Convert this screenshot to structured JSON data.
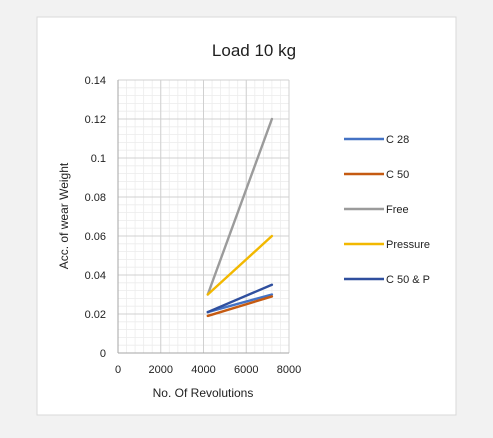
{
  "chart_data": {
    "type": "line",
    "title": "Load 10 kg",
    "xlabel": "No. Of Revolutions",
    "ylabel": "Acc. of  wear Weight",
    "xlim": [
      0,
      8000
    ],
    "ylim": [
      0,
      0.14
    ],
    "x_ticks": [
      "0",
      "2000",
      "4000",
      "6000",
      "8000"
    ],
    "y_ticks": [
      "0",
      "0.02",
      "0.04",
      "0.06",
      "0.08",
      "0.1",
      "0.12",
      "0.14"
    ],
    "x_ticks_values": [
      0,
      2000,
      4000,
      6000,
      8000
    ],
    "y_ticks_values": [
      0,
      0.02,
      0.04,
      0.06,
      0.08,
      0.1,
      0.12,
      0.14
    ],
    "grid": true,
    "legend_position": "right",
    "series": [
      {
        "name": "C 28",
        "color": "#4472c4",
        "x": [
          4200,
          7200
        ],
        "y": [
          0.021,
          0.03
        ]
      },
      {
        "name": "C 50",
        "color": "#c55a11",
        "x": [
          4200,
          7200
        ],
        "y": [
          0.019,
          0.029
        ]
      },
      {
        "name": "Free",
        "color": "#9b9b9b",
        "x": [
          4200,
          7200
        ],
        "y": [
          0.03,
          0.12
        ]
      },
      {
        "name": "Pressure",
        "color": "#f2b800",
        "x": [
          4200,
          7200
        ],
        "y": [
          0.03,
          0.06
        ]
      },
      {
        "name": "C 50 & P",
        "color": "#2f4f9e",
        "x": [
          4200,
          7200
        ],
        "y": [
          0.021,
          0.035
        ]
      }
    ]
  }
}
